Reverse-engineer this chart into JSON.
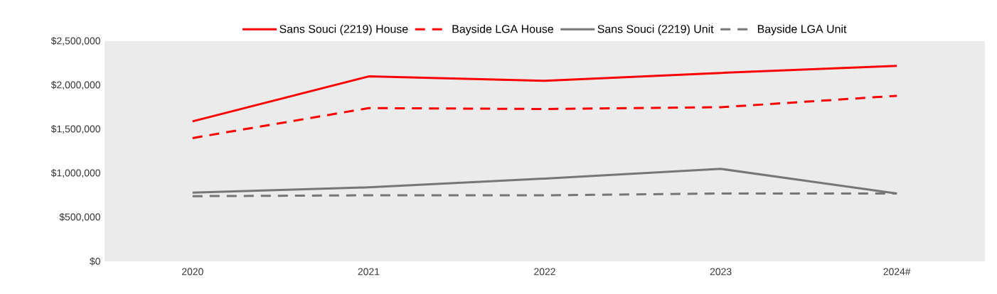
{
  "chart_data": {
    "type": "line",
    "categories": [
      "2020",
      "2021",
      "2022",
      "2023",
      "2024#"
    ],
    "series": [
      {
        "name": "Sans Souci (2219) House",
        "color": "#ff0000",
        "line_style": "solid",
        "values": [
          1590000,
          2100000,
          2050000,
          2140000,
          2220000
        ]
      },
      {
        "name": "Bayside LGA House",
        "color": "#ff0000",
        "line_style": "dashed",
        "values": [
          1400000,
          1740000,
          1730000,
          1750000,
          1880000
        ]
      },
      {
        "name": "Sans Souci (2219) Unit",
        "color": "#767676",
        "line_style": "solid",
        "values": [
          780000,
          840000,
          940000,
          1050000,
          770000
        ]
      },
      {
        "name": "Bayside LGA Unit",
        "color": "#767676",
        "line_style": "dashed",
        "values": [
          740000,
          750000,
          750000,
          770000,
          770000
        ]
      }
    ],
    "ylim": [
      0,
      2500000
    ],
    "yticks": [
      {
        "value": 0,
        "label": "$0"
      },
      {
        "value": 500000,
        "label": "$500,000"
      },
      {
        "value": 1000000,
        "label": "$1,000,000"
      },
      {
        "value": 1500000,
        "label": "$1,500,000"
      },
      {
        "value": 2000000,
        "label": "$2,000,000"
      },
      {
        "value": 2500000,
        "label": "$2,500,000"
      }
    ],
    "grid": false,
    "legend": "top"
  }
}
